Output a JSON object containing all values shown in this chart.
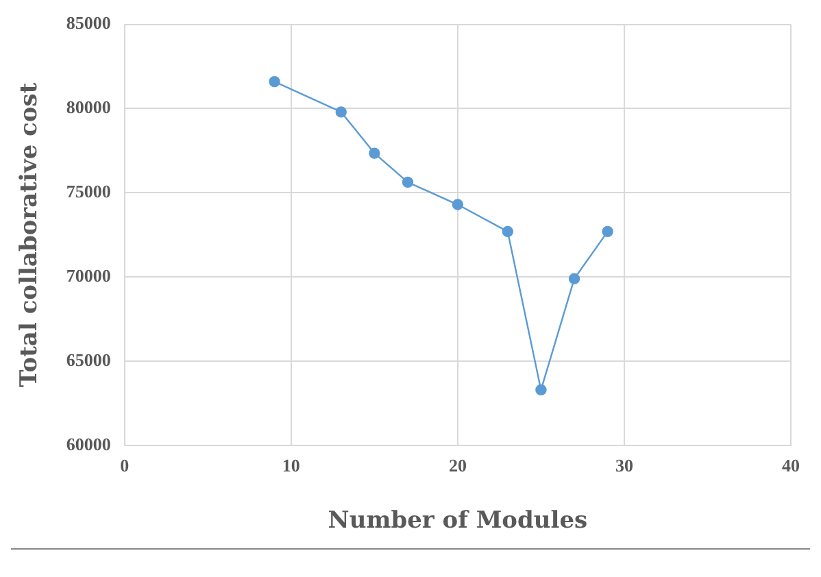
{
  "chart_data": {
    "type": "line",
    "xlabel": "Number of Modules",
    "ylabel": "Total collaborative cost",
    "x": [
      9,
      13,
      15,
      17,
      20,
      23,
      25,
      27,
      29
    ],
    "series": [
      {
        "color": "#5b9bd5",
        "values": [
          81600,
          79800,
          77350,
          75630,
          74300,
          72700,
          63300,
          69900,
          72700
        ]
      }
    ],
    "xlim": [
      0,
      40
    ],
    "xticks": [
      0,
      10,
      20,
      30,
      40
    ],
    "ylim": [
      60000,
      85000
    ],
    "yticks": [
      60000,
      65000,
      70000,
      75000,
      80000,
      85000
    ],
    "grid": true,
    "legend": false,
    "marker": "circle",
    "line_style": "solid"
  }
}
